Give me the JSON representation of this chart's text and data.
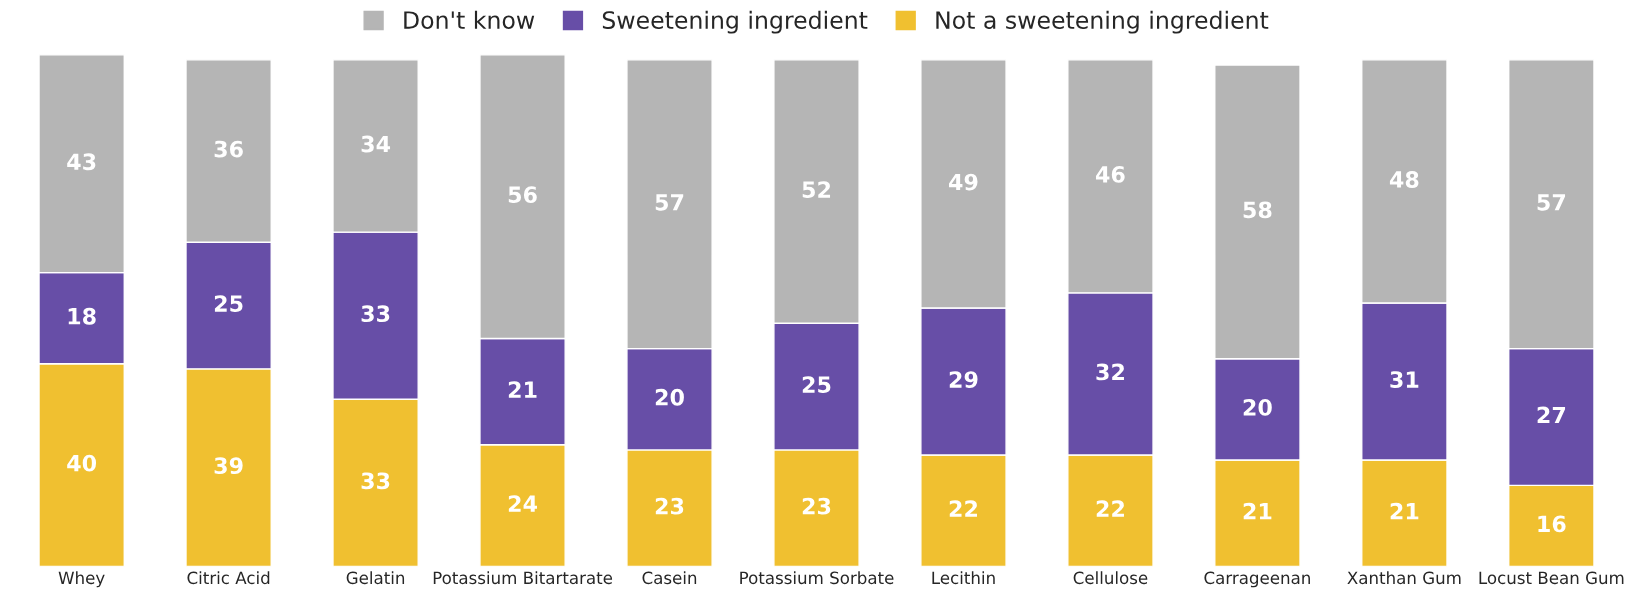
{
  "chart_data": {
    "type": "bar",
    "stacked": true,
    "data_labels": true,
    "legend": "top",
    "grid": false,
    "tick_labels": "x",
    "categories": [
      "Whey",
      "Citric Acid",
      "Gelatin",
      "Potassium Bitartarate",
      "Casein",
      "Potassium Sorbate",
      "Lecithin",
      "Cellulose",
      "Carrageenan",
      "Xanthan Gum",
      "Locust Bean Gum"
    ],
    "series": [
      {
        "name": "Not a sweetening ingredient",
        "color": "#f0c030",
        "values": [
          40,
          39,
          33,
          24,
          23,
          23,
          22,
          22,
          21,
          21,
          16
        ]
      },
      {
        "name": "Sweetening ingredient",
        "color": "#674ea7",
        "values": [
          18,
          25,
          33,
          21,
          20,
          25,
          29,
          32,
          20,
          31,
          27
        ]
      },
      {
        "name": "Don't know",
        "color": "#b5b5b5",
        "values": [
          43,
          36,
          34,
          56,
          57,
          52,
          49,
          46,
          58,
          48,
          57
        ]
      }
    ]
  }
}
